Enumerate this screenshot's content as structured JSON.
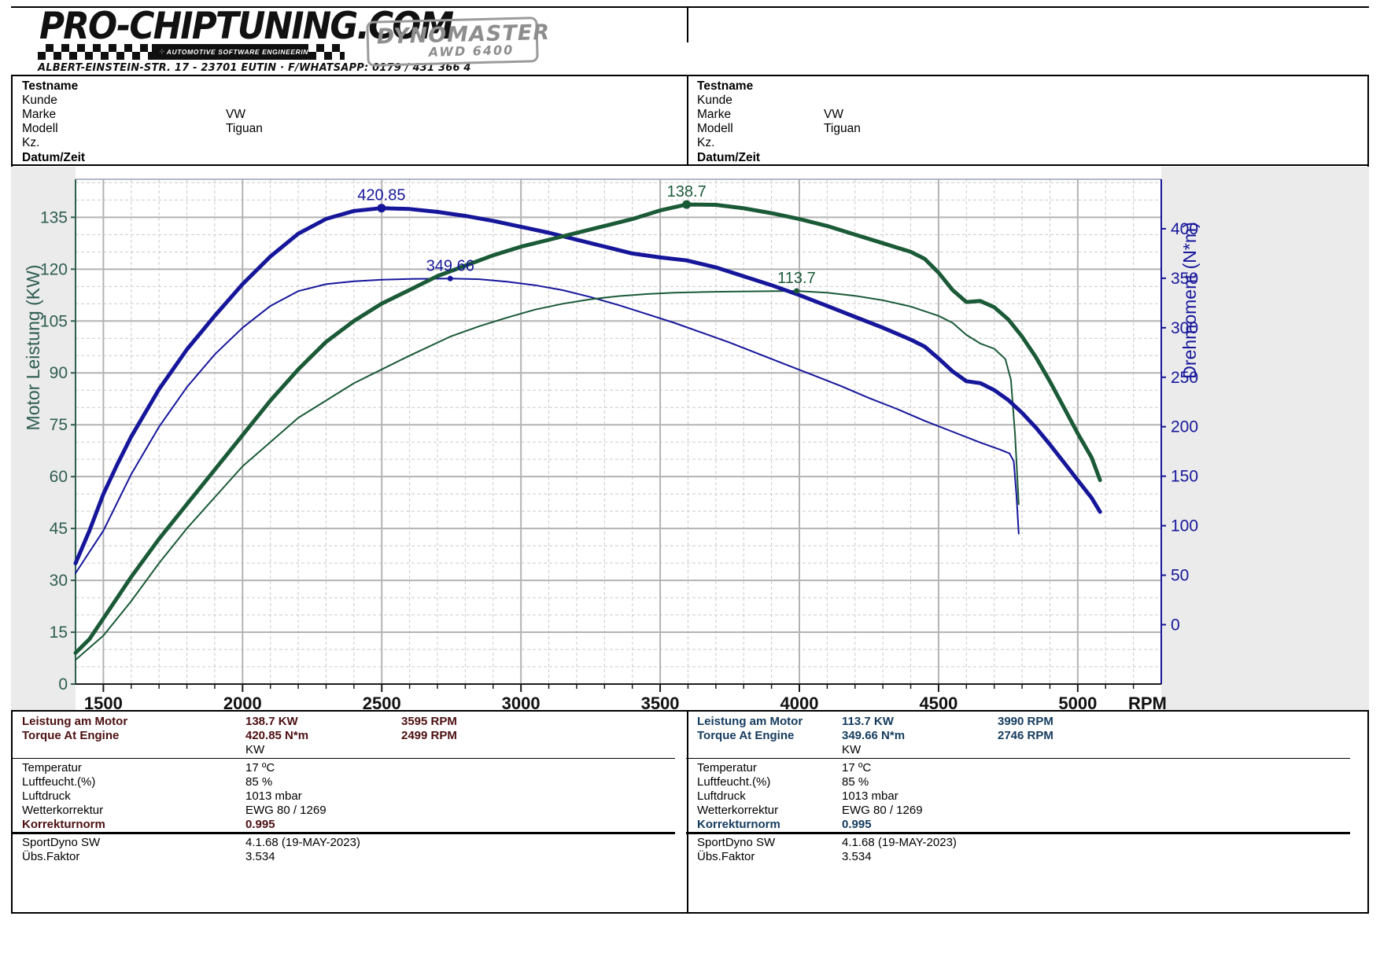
{
  "header": {
    "brand": "PRO-CHIPTUNING.COM",
    "tagline": "AUTOMOTIVE SOFTWARE ENGINEERING",
    "circuit_icon": "chip-icon",
    "address": "ALBERT-EINSTEIN-STR. 17 - 23701 EUTIN · F/WHATSAPP: 0179 / 431 366 4",
    "badge_line1": "DYNOMASTER",
    "badge_line2": "AWD 6400"
  },
  "info_panels": [
    {
      "rows": [
        {
          "label": "Testname",
          "value": "",
          "bold": true
        },
        {
          "label": "Kunde",
          "value": "",
          "bold": false
        },
        {
          "label": "Marke",
          "value": "VW",
          "bold": false
        },
        {
          "label": "Modell",
          "value": "Tiguan",
          "bold": false
        },
        {
          "label": "Kz.",
          "value": "",
          "bold": false
        },
        {
          "label": "Datum/Zeit",
          "value": "",
          "bold": true
        }
      ]
    },
    {
      "rows": [
        {
          "label": "Testname",
          "value": "",
          "bold": true
        },
        {
          "label": "Kunde",
          "value": "",
          "bold": false
        },
        {
          "label": "Marke",
          "value": "VW",
          "bold": false
        },
        {
          "label": "Modell",
          "value": "Tiguan",
          "bold": false
        },
        {
          "label": "Kz.",
          "value": "",
          "bold": false
        },
        {
          "label": "Datum/Zeit",
          "value": "",
          "bold": true
        }
      ]
    }
  ],
  "results": [
    {
      "accent": "#4d0f12",
      "rows": [
        {
          "label": "Leistung am Motor",
          "value": "138.7 KW",
          "extra": "3595 RPM",
          "style": "hdr"
        },
        {
          "label": "Torque At Engine",
          "value": "420.85 N*m",
          "extra": "2499 RPM",
          "style": "hdr"
        },
        {
          "label": "",
          "value": "KW",
          "extra": "",
          "style": "plain"
        },
        {
          "label": "Temperatur",
          "value": "17 ºC",
          "extra": "",
          "style": "plain"
        },
        {
          "label": "Luftfeucht.(%)",
          "value": "85 %",
          "extra": "",
          "style": "plain"
        },
        {
          "label": "Luftdruck",
          "value": "1013 mbar",
          "extra": "",
          "style": "plain"
        },
        {
          "label": "Wetterkorrektur",
          "value": "EWG 80 / 1269",
          "extra": "",
          "style": "plain"
        },
        {
          "label": "Korrekturnorm",
          "value": "0.995",
          "extra": "",
          "style": "accent-bold"
        },
        {
          "label": "SportDyno SW",
          "value": "4.1.68 (19-MAY-2023)",
          "extra": "",
          "style": "plain"
        },
        {
          "label": "Übs.Faktor",
          "value": "3.534",
          "extra": "",
          "style": "plain"
        }
      ]
    },
    {
      "accent": "#143b5e",
      "rows": [
        {
          "label": "Leistung am Motor",
          "value": "113.7 KW",
          "extra": "3990 RPM",
          "style": "hdr"
        },
        {
          "label": "Torque At Engine",
          "value": "349.66 N*m",
          "extra": "2746 RPM",
          "style": "hdr"
        },
        {
          "label": "",
          "value": "KW",
          "extra": "",
          "style": "plain"
        },
        {
          "label": "Temperatur",
          "value": "17 ºC",
          "extra": "",
          "style": "plain"
        },
        {
          "label": "Luftfeucht.(%)",
          "value": "85 %",
          "extra": "",
          "style": "plain"
        },
        {
          "label": "Luftdruck",
          "value": "1013 mbar",
          "extra": "",
          "style": "plain"
        },
        {
          "label": "Wetterkorrektur",
          "value": "EWG 80 / 1269",
          "extra": "",
          "style": "plain"
        },
        {
          "label": "Korrekturnorm",
          "value": "0.995",
          "extra": "",
          "style": "accent-bold"
        },
        {
          "label": "SportDyno SW",
          "value": "4.1.68 (19-MAY-2023)",
          "extra": "",
          "style": "plain"
        },
        {
          "label": "Übs.Faktor",
          "value": "3.534",
          "extra": "",
          "style": "plain"
        }
      ]
    }
  ],
  "chart_data": {
    "type": "line",
    "xlabel": "RPM",
    "ylabel_left": "Motor Leistung (KW)",
    "ylabel_right": "Drehmoment (N*m)",
    "x_axis": {
      "min": 1400,
      "max": 5300,
      "major_ticks": [
        1500,
        2000,
        2500,
        3000,
        3500,
        4000,
        4500,
        5000
      ],
      "minor_step": 100
    },
    "left_axis": {
      "min": 0,
      "max": 146,
      "ticks": [
        0,
        15,
        30,
        45,
        60,
        75,
        90,
        105,
        120,
        135
      ],
      "minor_step": 5,
      "color": "#2e5d51"
    },
    "right_axis": {
      "min": -60,
      "max": 450,
      "ticks": [
        0,
        50,
        100,
        150,
        200,
        250,
        300,
        350,
        400
      ],
      "color": "#16169b"
    },
    "grid": {
      "major_color": "#b3b3b3",
      "minor_color": "#cbcbcb",
      "margin_color": "#ebebeb"
    },
    "series": [
      {
        "name": "stock_torque",
        "axis": "right",
        "color": "#16169b",
        "width": 2,
        "peak_label": "349.66",
        "peak": [
          2746,
          349.66
        ],
        "points": [
          [
            1400,
            52
          ],
          [
            1500,
            95
          ],
          [
            1600,
            152
          ],
          [
            1700,
            200
          ],
          [
            1800,
            240
          ],
          [
            1900,
            273
          ],
          [
            2000,
            300
          ],
          [
            2100,
            322
          ],
          [
            2200,
            337
          ],
          [
            2300,
            344
          ],
          [
            2400,
            347
          ],
          [
            2500,
            348.5
          ],
          [
            2600,
            349.3
          ],
          [
            2746,
            349.66
          ],
          [
            2850,
            349
          ],
          [
            2950,
            346.5
          ],
          [
            3050,
            343
          ],
          [
            3150,
            338
          ],
          [
            3250,
            331
          ],
          [
            3350,
            323
          ],
          [
            3450,
            314
          ],
          [
            3550,
            305
          ],
          [
            3650,
            295
          ],
          [
            3750,
            285
          ],
          [
            3850,
            274
          ],
          [
            3950,
            263
          ],
          [
            4050,
            252
          ],
          [
            4150,
            241
          ],
          [
            4250,
            229
          ],
          [
            4350,
            218
          ],
          [
            4450,
            206
          ],
          [
            4550,
            195
          ],
          [
            4650,
            184
          ],
          [
            4720,
            177
          ],
          [
            4755,
            173
          ],
          [
            4770,
            165
          ],
          [
            4780,
            130
          ],
          [
            4788,
            92
          ]
        ]
      },
      {
        "name": "stock_power",
        "axis": "left",
        "color": "#1b5a37",
        "width": 2,
        "peak_label": "113.7",
        "peak": [
          3990,
          113.7
        ],
        "points": [
          [
            1400,
            7
          ],
          [
            1500,
            14
          ],
          [
            1600,
            24
          ],
          [
            1700,
            35
          ],
          [
            1800,
            45
          ],
          [
            1900,
            54
          ],
          [
            2000,
            63
          ],
          [
            2100,
            70
          ],
          [
            2200,
            77
          ],
          [
            2300,
            82
          ],
          [
            2400,
            87
          ],
          [
            2500,
            91
          ],
          [
            2600,
            95
          ],
          [
            2746,
            100.5
          ],
          [
            2850,
            103.5
          ],
          [
            2950,
            106
          ],
          [
            3050,
            108.3
          ],
          [
            3150,
            110
          ],
          [
            3250,
            111.3
          ],
          [
            3350,
            112.2
          ],
          [
            3450,
            112.8
          ],
          [
            3550,
            113.2
          ],
          [
            3650,
            113.4
          ],
          [
            3750,
            113.5
          ],
          [
            3850,
            113.6
          ],
          [
            3990,
            113.7
          ],
          [
            4100,
            113.2
          ],
          [
            4200,
            112.3
          ],
          [
            4300,
            111
          ],
          [
            4400,
            109.2
          ],
          [
            4500,
            106.5
          ],
          [
            4550,
            104.5
          ],
          [
            4600,
            101
          ],
          [
            4650,
            98.5
          ],
          [
            4700,
            97
          ],
          [
            4740,
            94
          ],
          [
            4760,
            88
          ],
          [
            4775,
            72
          ],
          [
            4788,
            52
          ]
        ]
      },
      {
        "name": "tuned_torque",
        "axis": "right",
        "color": "#16169b",
        "width": 5,
        "peak_label": "420.85",
        "peak": [
          2499,
          420.85
        ],
        "points": [
          [
            1400,
            62
          ],
          [
            1450,
            95
          ],
          [
            1500,
            132
          ],
          [
            1550,
            162
          ],
          [
            1600,
            190
          ],
          [
            1700,
            238
          ],
          [
            1800,
            278
          ],
          [
            1900,
            312
          ],
          [
            2000,
            344
          ],
          [
            2100,
            372
          ],
          [
            2200,
            395
          ],
          [
            2300,
            410
          ],
          [
            2400,
            418
          ],
          [
            2499,
            420.85
          ],
          [
            2600,
            420
          ],
          [
            2700,
            417
          ],
          [
            2800,
            413
          ],
          [
            2900,
            408
          ],
          [
            3000,
            402
          ],
          [
            3100,
            396
          ],
          [
            3200,
            389
          ],
          [
            3300,
            382
          ],
          [
            3400,
            375
          ],
          [
            3500,
            371
          ],
          [
            3595,
            368
          ],
          [
            3700,
            361
          ],
          [
            3800,
            352
          ],
          [
            3900,
            343
          ],
          [
            4000,
            333
          ],
          [
            4100,
            322
          ],
          [
            4200,
            311
          ],
          [
            4300,
            300
          ],
          [
            4400,
            288
          ],
          [
            4450,
            281
          ],
          [
            4500,
            269
          ],
          [
            4550,
            256
          ],
          [
            4600,
            246
          ],
          [
            4650,
            244
          ],
          [
            4700,
            237
          ],
          [
            4750,
            227
          ],
          [
            4800,
            214
          ],
          [
            4850,
            199
          ],
          [
            4900,
            182
          ],
          [
            4950,
            164
          ],
          [
            5000,
            146
          ],
          [
            5050,
            128
          ],
          [
            5080,
            114
          ]
        ]
      },
      {
        "name": "tuned_power",
        "axis": "left",
        "color": "#1b5a37",
        "width": 5,
        "peak_label": "138.7",
        "peak": [
          3595,
          138.7
        ],
        "points": [
          [
            1400,
            9
          ],
          [
            1450,
            13
          ],
          [
            1500,
            19
          ],
          [
            1550,
            25
          ],
          [
            1600,
            31
          ],
          [
            1700,
            42
          ],
          [
            1800,
            52
          ],
          [
            1900,
            62
          ],
          [
            2000,
            72
          ],
          [
            2100,
            82
          ],
          [
            2200,
            91
          ],
          [
            2300,
            99
          ],
          [
            2400,
            105
          ],
          [
            2499,
            110
          ],
          [
            2600,
            114
          ],
          [
            2700,
            118
          ],
          [
            2800,
            121
          ],
          [
            2900,
            124
          ],
          [
            3000,
            126.5
          ],
          [
            3100,
            128.5
          ],
          [
            3200,
            130.5
          ],
          [
            3300,
            132.5
          ],
          [
            3400,
            134.5
          ],
          [
            3500,
            137
          ],
          [
            3595,
            138.7
          ],
          [
            3700,
            138.6
          ],
          [
            3800,
            137.6
          ],
          [
            3900,
            136.2
          ],
          [
            4000,
            134.5
          ],
          [
            4100,
            132.5
          ],
          [
            4200,
            130
          ],
          [
            4300,
            127.5
          ],
          [
            4400,
            125
          ],
          [
            4450,
            123
          ],
          [
            4500,
            119
          ],
          [
            4550,
            114
          ],
          [
            4600,
            110.5
          ],
          [
            4650,
            110.8
          ],
          [
            4700,
            109
          ],
          [
            4750,
            105.5
          ],
          [
            4800,
            100.5
          ],
          [
            4850,
            94.5
          ],
          [
            4900,
            87.5
          ],
          [
            4950,
            80
          ],
          [
            5000,
            72.5
          ],
          [
            5050,
            65.5
          ],
          [
            5080,
            59
          ]
        ]
      }
    ]
  }
}
